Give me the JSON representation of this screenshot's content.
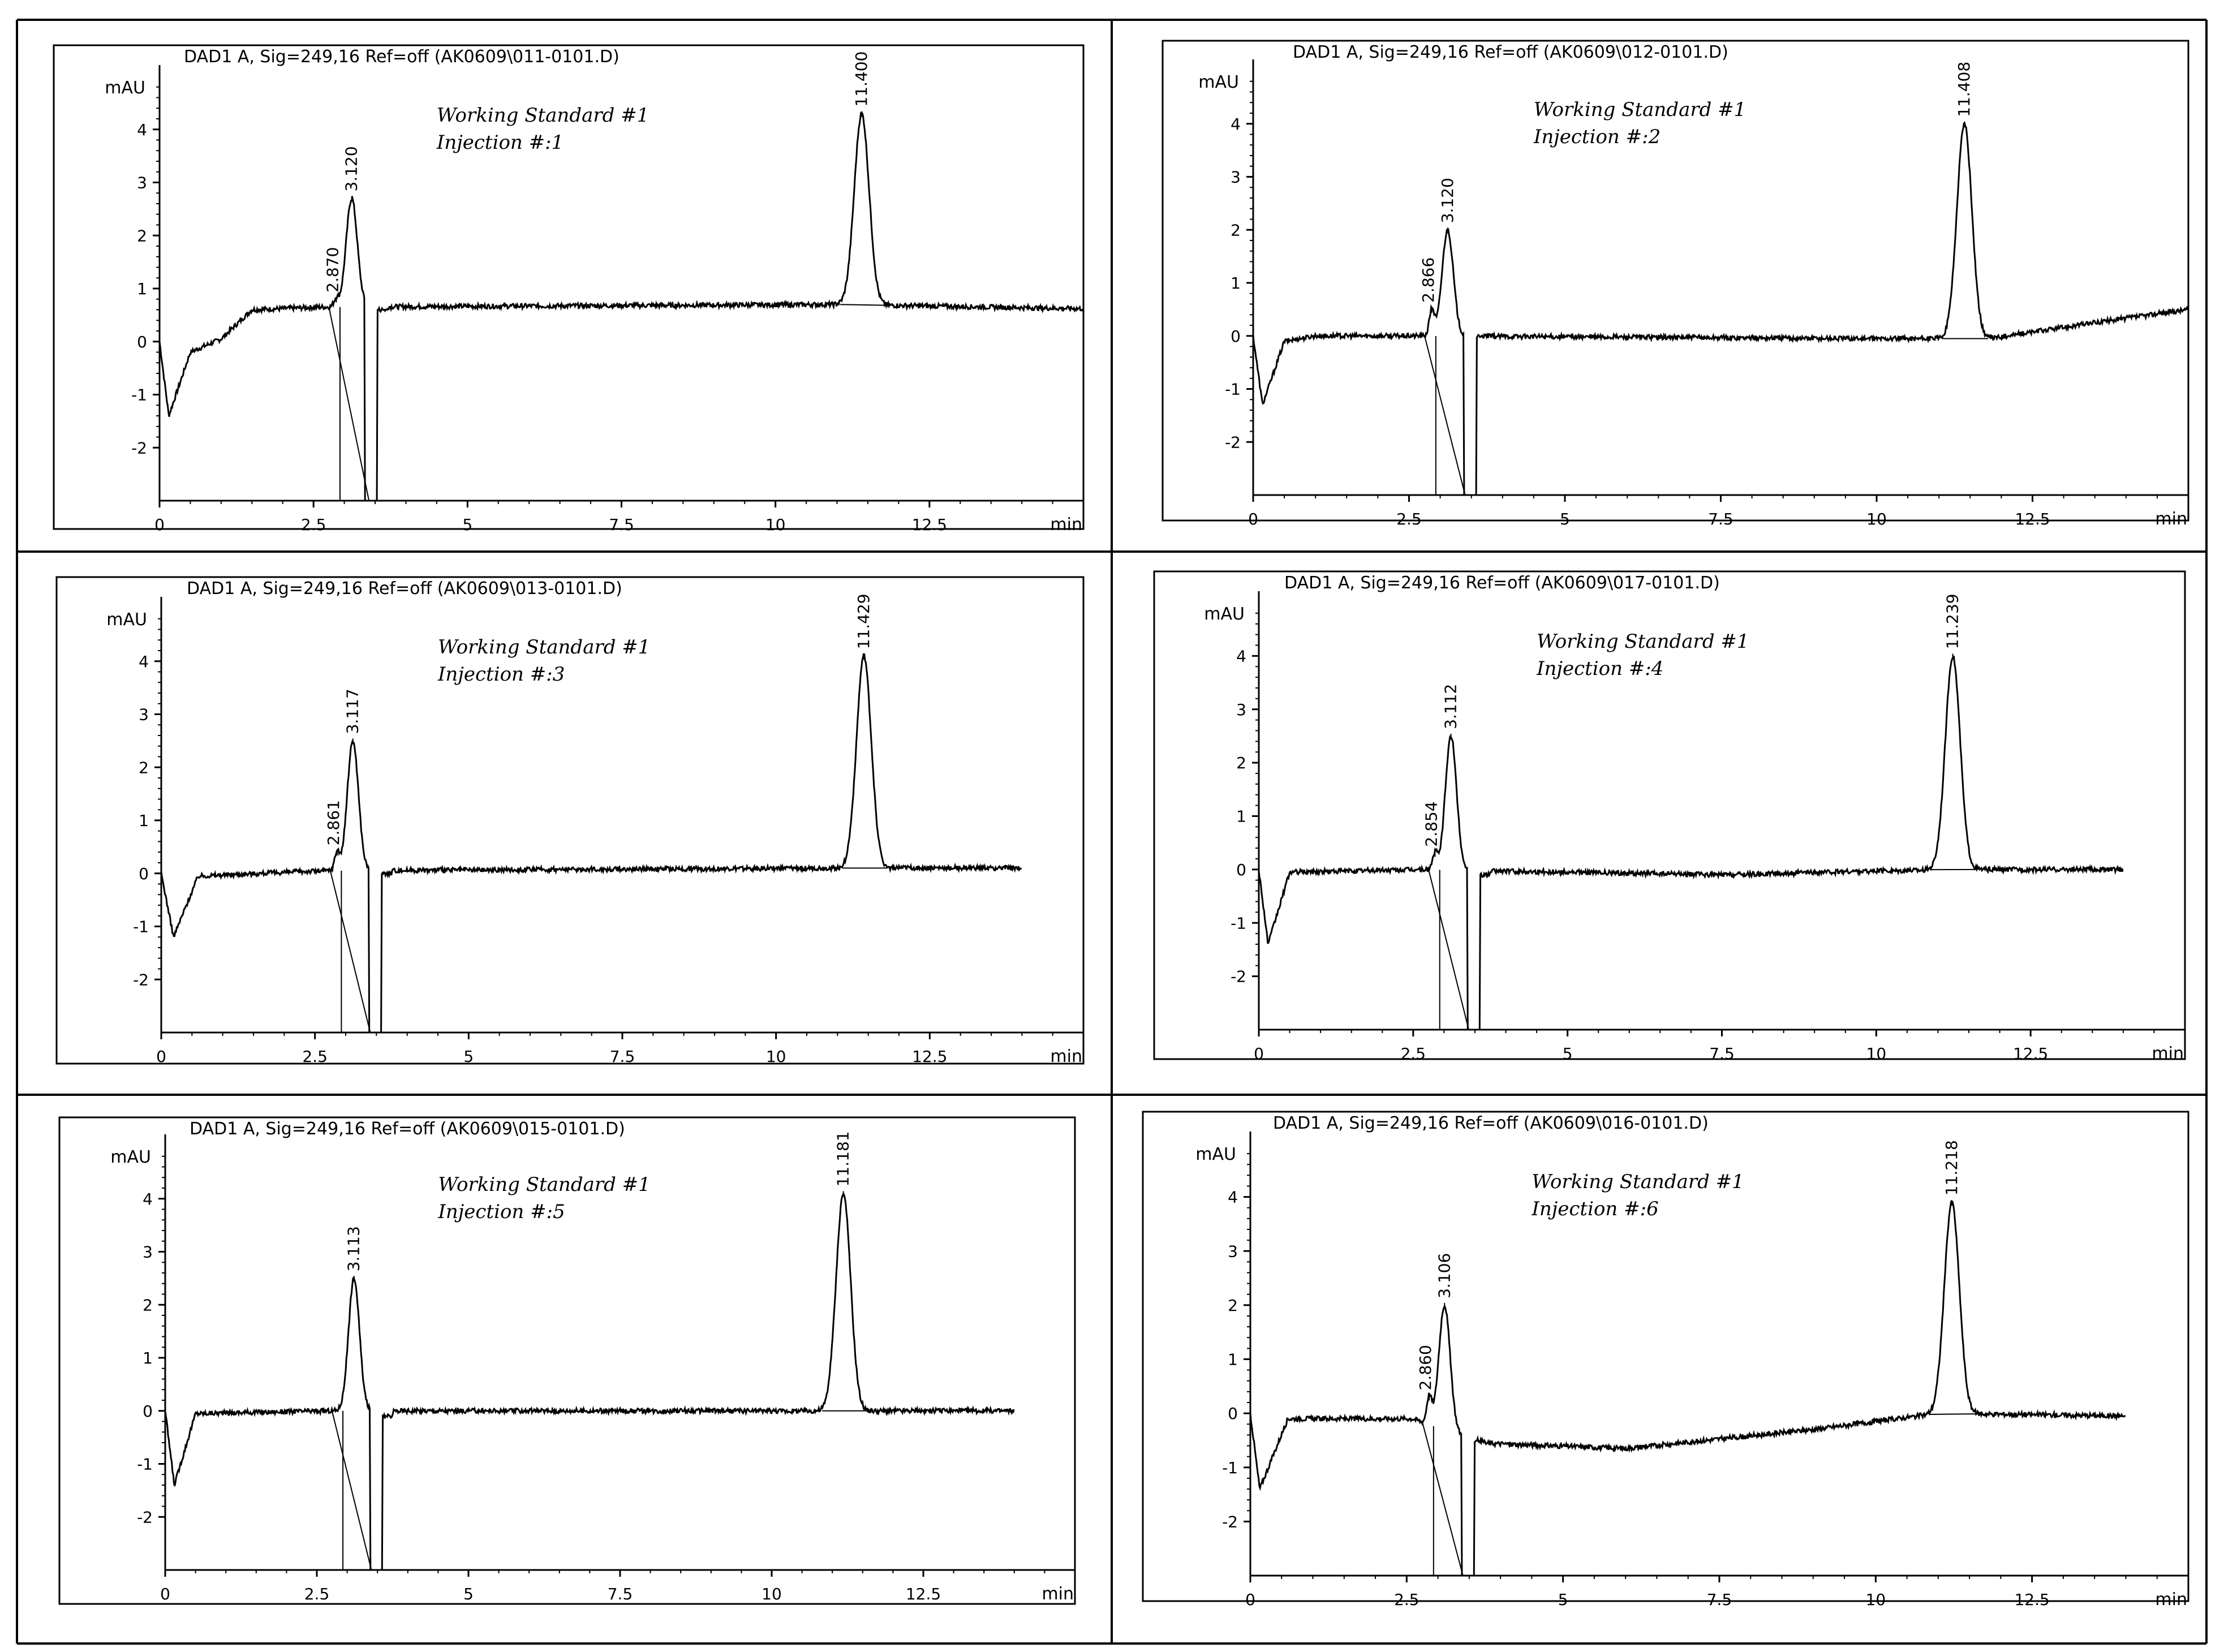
{
  "colors": {
    "trace": "#000000",
    "frame": "#000000",
    "background": "#ffffff"
  },
  "chart_data": [
    {
      "type": "line",
      "title": "DAD1 A, Sig=249,16 Ref=off (AK0609\\011-0101.D)",
      "annotation_lines": [
        "Working Standard #1",
        "Injection #:1"
      ],
      "ylabel": "mAU",
      "xlabel": "min",
      "xlim": [
        0,
        15
      ],
      "ylim": [
        -3,
        5
      ],
      "x_ticks": [
        "0",
        "2.5",
        "5",
        "7.5",
        "10",
        "12.5"
      ],
      "y_ticks": [
        "-2",
        "-1",
        "0",
        "1",
        "2",
        "3",
        "4"
      ],
      "peaks": [
        {
          "label": "2.870",
          "x": 2.87,
          "y": 0.8
        },
        {
          "label": "3.120",
          "x": 3.12,
          "y": 2.7
        },
        {
          "label": "11.400",
          "x": 11.4,
          "y": 4.3
        }
      ],
      "baseline": [
        [
          0,
          0
        ],
        [
          0.15,
          -1.4
        ],
        [
          0.5,
          -0.2
        ],
        [
          1.0,
          0.05
        ],
        [
          1.5,
          0.6
        ],
        [
          2.6,
          0.65
        ],
        [
          11.0,
          0.7
        ],
        [
          15.0,
          0.62
        ]
      ],
      "dip": {
        "x": 3.45,
        "min_y": -3.0,
        "recover_y": 0.6
      },
      "trace_end": 15.0
    },
    {
      "type": "line",
      "title": "DAD1 A, Sig=249,16 Ref=off (AK0609\\012-0101.D)",
      "annotation_lines": [
        "Working Standard #1",
        "Injection #:2"
      ],
      "ylabel": "mAU",
      "xlabel": "min",
      "xlim": [
        0,
        15
      ],
      "ylim": [
        -3,
        5
      ],
      "x_ticks": [
        "0",
        "2.5",
        "5",
        "7.5",
        "10",
        "12.5"
      ],
      "y_ticks": [
        "-2",
        "-1",
        "0",
        "1",
        "2",
        "3",
        "4"
      ],
      "peaks": [
        {
          "label": "2.866",
          "x": 2.866,
          "y": 0.5
        },
        {
          "label": "3.120",
          "x": 3.12,
          "y": 2.0
        },
        {
          "label": "11.408",
          "x": 11.408,
          "y": 4.0
        }
      ],
      "baseline": [
        [
          0,
          0
        ],
        [
          0.15,
          -1.3
        ],
        [
          0.5,
          -0.1
        ],
        [
          1.0,
          0.0
        ],
        [
          2.6,
          0.0
        ],
        [
          10.0,
          -0.05
        ],
        [
          11.8,
          -0.05
        ],
        [
          13.5,
          0.25
        ],
        [
          15.0,
          0.5
        ]
      ],
      "dip": {
        "x": 3.5,
        "min_y": -3.0,
        "recover_y": 0.0
      },
      "trace_end": 15.0
    },
    {
      "type": "line",
      "title": "DAD1 A, Sig=249,16 Ref=off (AK0609\\013-0101.D)",
      "annotation_lines": [
        "Working Standard #1",
        "Injection #:3"
      ],
      "ylabel": "mAU",
      "xlabel": "min",
      "xlim": [
        0,
        15
      ],
      "ylim": [
        -3,
        5
      ],
      "x_ticks": [
        "0",
        "2.5",
        "5",
        "7.5",
        "10",
        "12.5"
      ],
      "y_ticks": [
        "-2",
        "-1",
        "0",
        "1",
        "2",
        "3",
        "4"
      ],
      "peaks": [
        {
          "label": "2.861",
          "x": 2.861,
          "y": 0.4
        },
        {
          "label": "3.117",
          "x": 3.117,
          "y": 2.5
        },
        {
          "label": "11.429",
          "x": 11.429,
          "y": 4.1
        }
      ],
      "baseline": [
        [
          0,
          0
        ],
        [
          0.2,
          -1.2
        ],
        [
          0.6,
          -0.05
        ],
        [
          2.6,
          0.05
        ],
        [
          11.0,
          0.1
        ],
        [
          14.0,
          0.1
        ]
      ],
      "dip": {
        "x": 3.5,
        "min_y": -3.0,
        "recover_y": 0.0
      },
      "trace_end": 14.0
    },
    {
      "type": "line",
      "title": "DAD1 A, Sig=249,16 Ref=off (AK0609\\017-0101.D)",
      "annotation_lines": [
        "Working Standard #1",
        "Injection #:4"
      ],
      "ylabel": "mAU",
      "xlabel": "min",
      "xlim": [
        0,
        15
      ],
      "ylim": [
        -3,
        5
      ],
      "x_ticks": [
        "0",
        "2.5",
        "5",
        "7.5",
        "10",
        "12.5"
      ],
      "y_ticks": [
        "-2",
        "-1",
        "0",
        "1",
        "2",
        "3",
        "4"
      ],
      "peaks": [
        {
          "label": "2.854",
          "x": 2.854,
          "y": 0.3
        },
        {
          "label": "3.112",
          "x": 3.112,
          "y": 2.5
        },
        {
          "label": "11.239",
          "x": 11.239,
          "y": 4.0
        }
      ],
      "baseline": [
        [
          0,
          0
        ],
        [
          0.15,
          -1.4
        ],
        [
          0.5,
          -0.05
        ],
        [
          2.6,
          0.0
        ],
        [
          7.5,
          -0.1
        ],
        [
          11.0,
          0.0
        ],
        [
          14.0,
          0.0
        ]
      ],
      "dip": {
        "x": 3.5,
        "min_y": -3.0,
        "recover_y": -0.1
      },
      "trace_end": 14.0
    },
    {
      "type": "line",
      "title": "DAD1 A, Sig=249,16 Ref=off (AK0609\\015-0101.D)",
      "annotation_lines": [
        "Working Standard #1",
        "Injection #:5"
      ],
      "ylabel": "mAU",
      "xlabel": "min",
      "xlim": [
        0,
        15
      ],
      "ylim": [
        -3,
        5
      ],
      "x_ticks": [
        "0",
        "2.5",
        "5",
        "7.5",
        "10",
        "12.5"
      ],
      "y_ticks": [
        "-2",
        "-1",
        "0",
        "1",
        "2",
        "3",
        "4"
      ],
      "peaks": [
        {
          "label": "3.113",
          "x": 3.113,
          "y": 2.5
        },
        {
          "label": "11.181",
          "x": 11.181,
          "y": 4.1
        }
      ],
      "baseline": [
        [
          0,
          0
        ],
        [
          0.15,
          -1.4
        ],
        [
          0.5,
          -0.05
        ],
        [
          2.6,
          0.0
        ],
        [
          7.5,
          0.0
        ],
        [
          14.0,
          0.0
        ]
      ],
      "dip": {
        "x": 3.5,
        "min_y": -3.0,
        "recover_y": -0.1
      },
      "trace_end": 14.0
    },
    {
      "type": "line",
      "title": "DAD1 A, Sig=249,16 Ref=off (AK0609\\016-0101.D)",
      "annotation_lines": [
        "Working Standard #1",
        "Injection #:6"
      ],
      "ylabel": "mAU",
      "xlabel": "min",
      "xlim": [
        0,
        15
      ],
      "ylim": [
        -3,
        5
      ],
      "x_ticks": [
        "0",
        "2.5",
        "5",
        "7.5",
        "10",
        "12.5"
      ],
      "y_ticks": [
        "-2",
        "-1",
        "0",
        "1",
        "2",
        "3",
        "4"
      ],
      "peaks": [
        {
          "label": "2.860",
          "x": 2.86,
          "y": 0.3
        },
        {
          "label": "3.106",
          "x": 3.106,
          "y": 2.0
        },
        {
          "label": "11.218",
          "x": 11.218,
          "y": 3.9
        }
      ],
      "baseline": [
        [
          0,
          0
        ],
        [
          0.15,
          -1.4
        ],
        [
          0.6,
          -0.1
        ],
        [
          2.6,
          -0.1
        ],
        [
          3.7,
          -0.55
        ],
        [
          6.0,
          -0.65
        ],
        [
          9.0,
          -0.3
        ],
        [
          11.0,
          0.0
        ],
        [
          14.0,
          -0.05
        ]
      ],
      "dip": {
        "x": 3.5,
        "min_y": -3.0,
        "recover_y": -0.5
      },
      "trace_end": 14.0
    }
  ]
}
